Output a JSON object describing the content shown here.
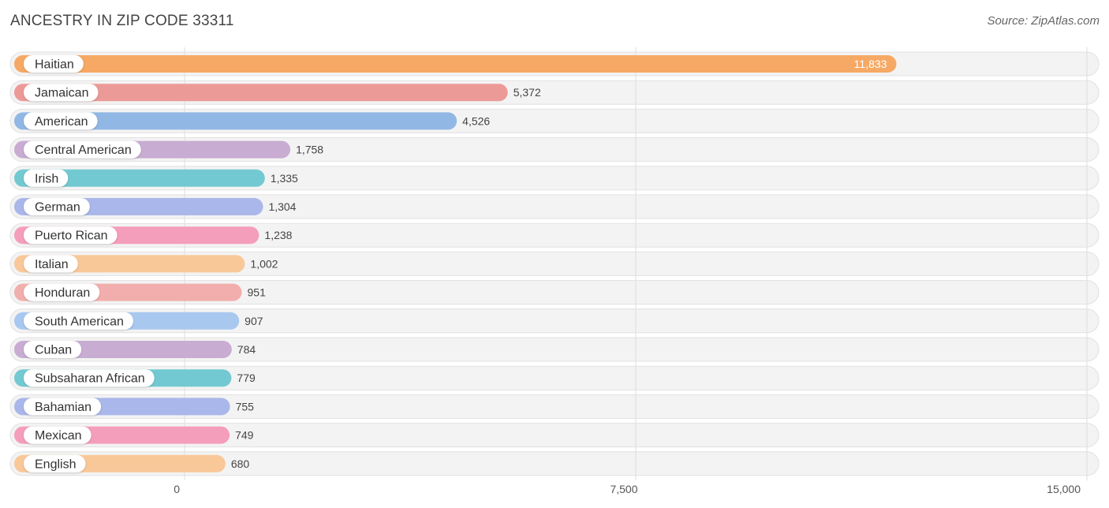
{
  "title": "ANCESTRY IN ZIP CODE 33311",
  "source": "Source: ZipAtlas.com",
  "chart_data": {
    "type": "bar",
    "orientation": "horizontal",
    "title": "ANCESTRY IN ZIP CODE 33311",
    "xlim": [
      0,
      15000
    ],
    "ticks": [
      0,
      7500,
      15000
    ],
    "tick_labels": [
      "0",
      "7,500",
      "15,000"
    ],
    "categories": [
      "Haitian",
      "Jamaican",
      "American",
      "Central American",
      "Irish",
      "German",
      "Puerto Rican",
      "Italian",
      "Honduran",
      "South American",
      "Cuban",
      "Subsaharan African",
      "Bahamian",
      "Mexican",
      "English"
    ],
    "values": [
      11833,
      5372,
      4526,
      1758,
      1335,
      1304,
      1238,
      1002,
      951,
      907,
      784,
      779,
      755,
      749,
      680
    ],
    "value_labels": [
      "11,833",
      "5,372",
      "4,526",
      "1,758",
      "1,335",
      "1,304",
      "1,238",
      "1,002",
      "951",
      "907",
      "784",
      "779",
      "755",
      "749",
      "680"
    ],
    "colors": [
      "#f6a964",
      "#ec9a98",
      "#91b7e5",
      "#c8acd2",
      "#73c9d1",
      "#aab7ea",
      "#f49ebb",
      "#f9c899",
      "#f2aeac",
      "#a9c8ef",
      "#c8acd2",
      "#73c9d1",
      "#aab7ea",
      "#f49ebb",
      "#f9c899"
    ],
    "grid": true
  }
}
